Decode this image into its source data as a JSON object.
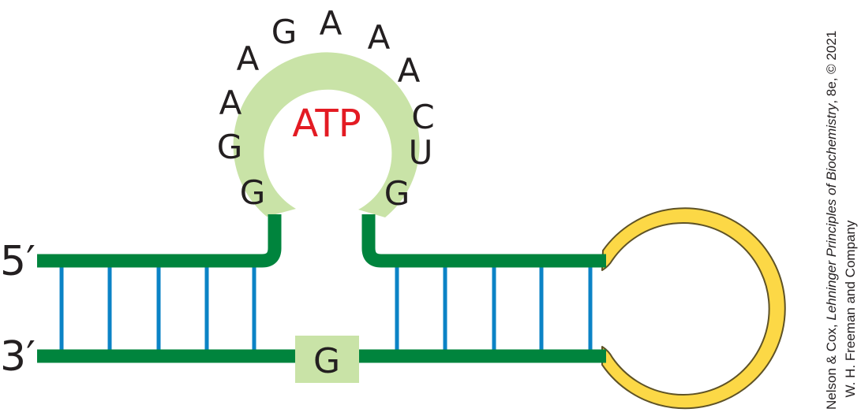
{
  "colors": {
    "backbone": "#00843d",
    "rungs": "#0b83c6",
    "aptamer_bg": "#c9e3a7",
    "loop": "#fcd846",
    "loop_stroke": "#5e5226",
    "ligand_text": "#e31b23",
    "label_text": "#231f20"
  },
  "strands": {
    "five_prime": "5′",
    "three_prime": "3′"
  },
  "aptamer": {
    "ligand": "ATP",
    "loop_bases": [
      "G",
      "G",
      "A",
      "A",
      "G",
      "A",
      "A",
      "A",
      "C",
      "U",
      "G"
    ],
    "bulge_base": "G"
  },
  "credit": {
    "line1_authors": "Nelson & Cox, ",
    "line1_title": "Lehninger Principles of Biochemistry",
    "line1_edition": ", 8e, © 2021",
    "line2": "W. H. Freeman and Company"
  },
  "icons": {}
}
